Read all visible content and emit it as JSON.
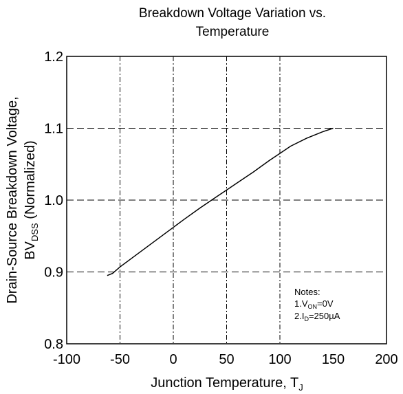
{
  "chart_data": {
    "type": "line",
    "title": [
      "Breakdown Voltage Variation vs.",
      "Temperature"
    ],
    "xlabel": {
      "main": "Junction Temperature, T",
      "sub": "J"
    },
    "ylabel": {
      "line1": "Drain-Source Breakdown Voltage,",
      "line2_main": "BV",
      "line2_sub": "DSS",
      "line2_rest": " (Normalized)"
    },
    "xlim": [
      -100,
      200
    ],
    "ylim": [
      0.8,
      1.2
    ],
    "x_ticks": [
      -100,
      -50,
      0,
      50,
      100,
      150,
      200
    ],
    "x_tick_labels": [
      "-100",
      "-50",
      "0",
      "50",
      "100",
      "150",
      "200"
    ],
    "y_ticks": [
      0.8,
      0.9,
      1.0,
      1.1,
      1.2
    ],
    "y_tick_labels": [
      "0.8",
      "0.9",
      "1.0",
      "1.1",
      "1.2"
    ],
    "grid": {
      "vertical": [
        -50,
        0,
        50,
        100
      ],
      "horizontal": [
        0.9,
        1.0,
        1.1
      ],
      "style": "dash-dot"
    },
    "series": [
      {
        "x": [
          -62,
          -57,
          -50,
          -40,
          -30,
          -20,
          -10,
          0,
          10,
          25,
          40,
          50,
          60,
          75,
          90,
          100,
          110,
          125,
          140,
          150
        ],
        "y": [
          0.895,
          0.898,
          0.907,
          0.918,
          0.929,
          0.94,
          0.951,
          0.962,
          0.973,
          0.989,
          1.004,
          1.014,
          1.024,
          1.039,
          1.055,
          1.065,
          1.075,
          1.086,
          1.095,
          1.1
        ]
      }
    ],
    "notes": {
      "heading": "Notes:",
      "line1": {
        "prefix": "1.V",
        "sub": "ON",
        "suffix": "=0V"
      },
      "line2": {
        "prefix": "2.I",
        "sub": "D",
        "suffix": "=250µA"
      }
    }
  }
}
